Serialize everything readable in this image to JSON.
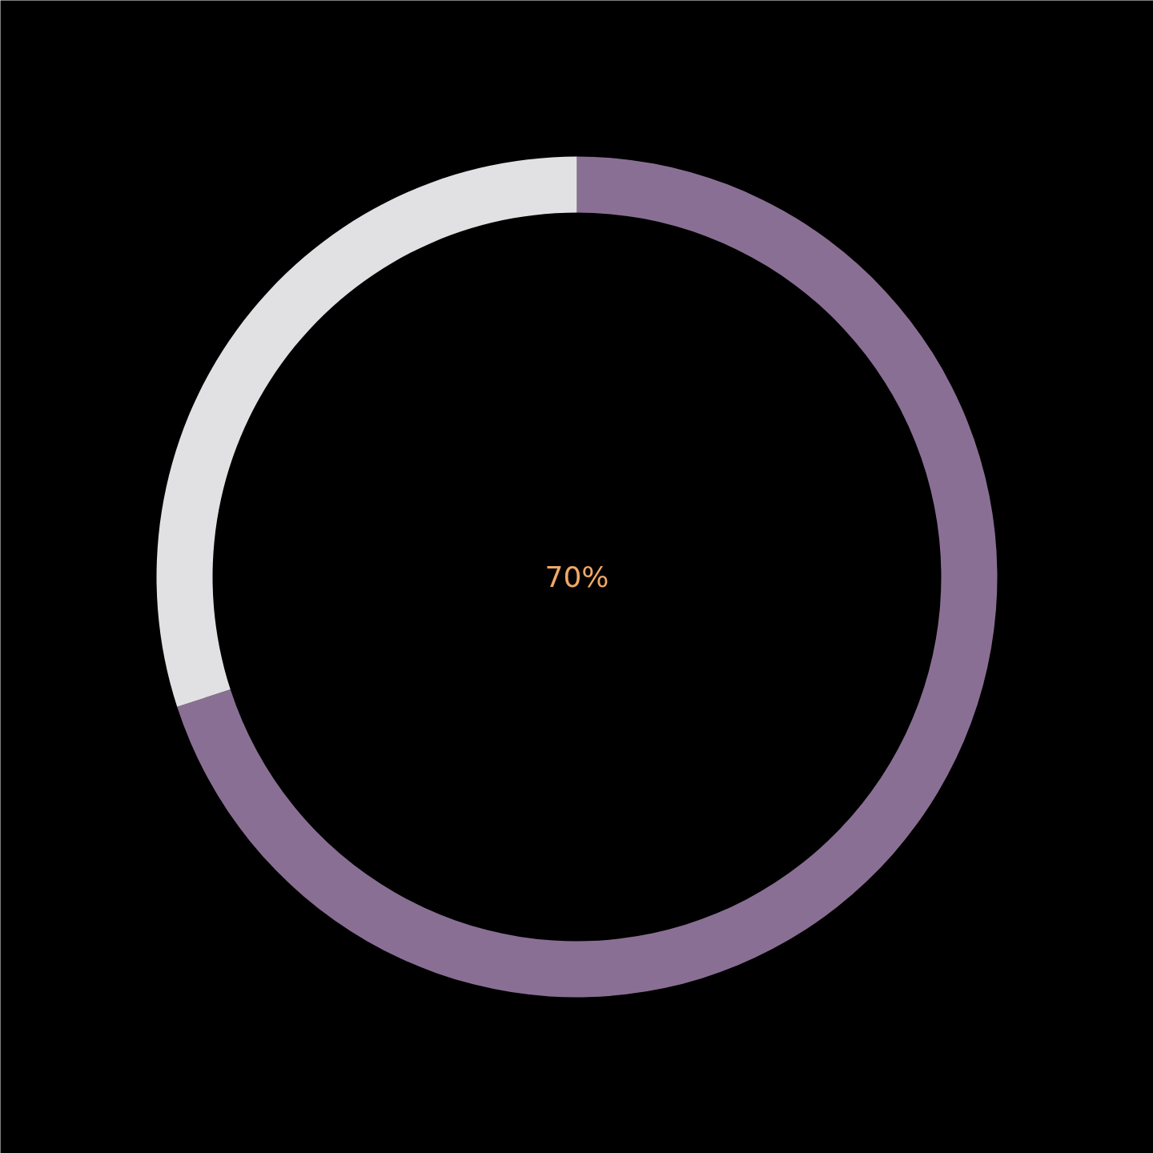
{
  "chart_data": {
    "type": "donut",
    "categories": [
      null,
      null
    ],
    "values": [
      70,
      30
    ],
    "colors": [
      "#8a6f94",
      "#e1e1e3"
    ],
    "annotations": [
      "70%"
    ]
  }
}
